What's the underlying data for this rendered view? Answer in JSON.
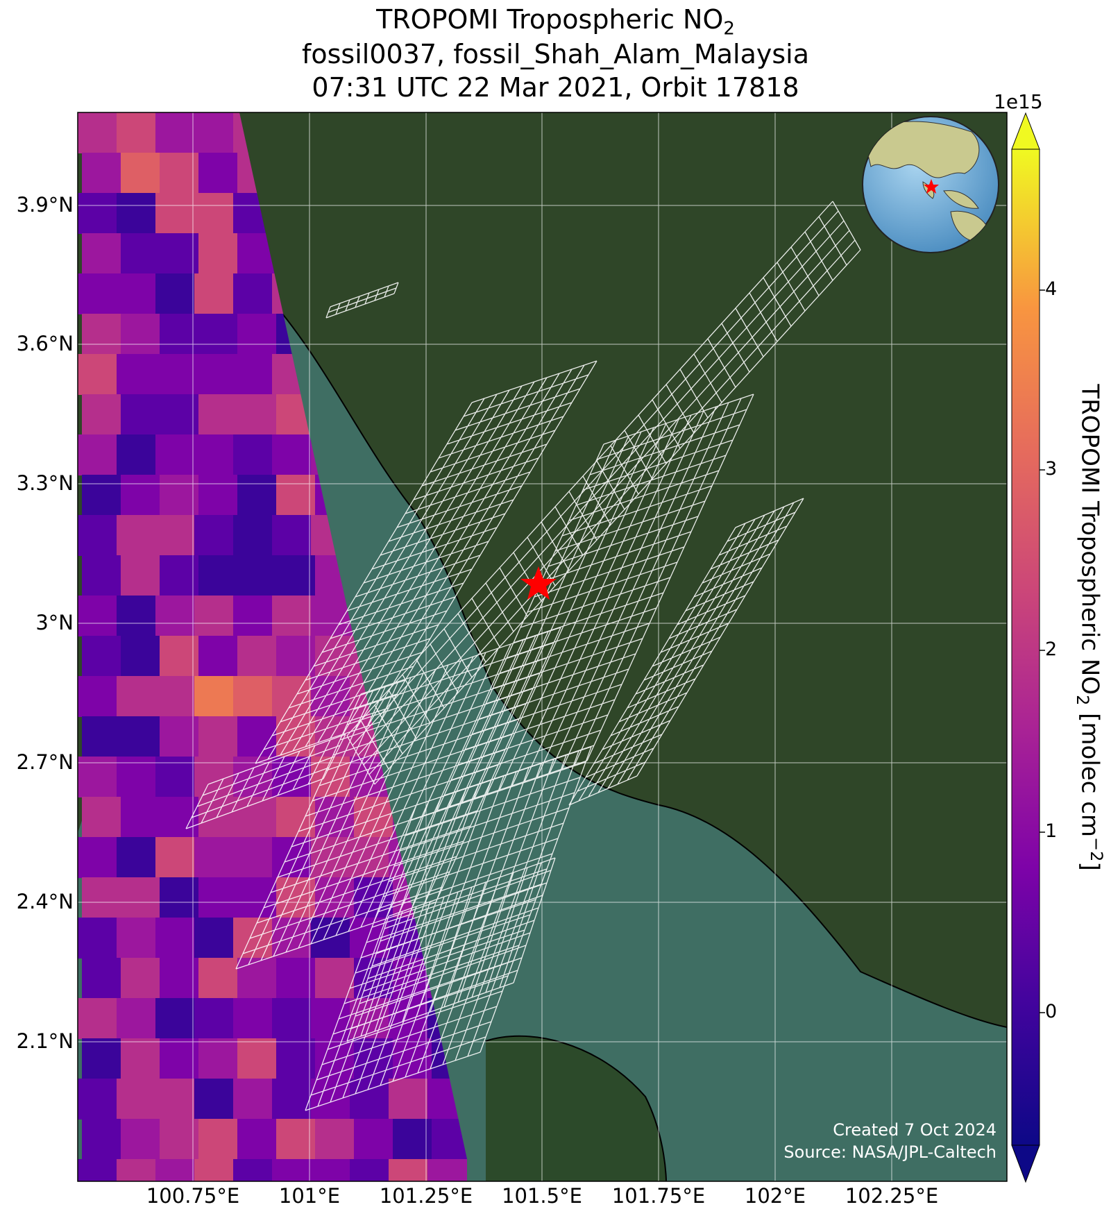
{
  "title": {
    "line1_main": "TROPOMI Tropospheric NO",
    "line1_sub": "2",
    "line2": "fossil0037, fossil_Shah_Alam_Malaysia",
    "line3": "07:31 UTC 22 Mar 2021, Orbit 17818"
  },
  "map": {
    "lat_ticks": [
      "3.9°N",
      "3.6°N",
      "3.3°N",
      "3°N",
      "2.7°N",
      "2.4°N",
      "2.1°N"
    ],
    "lon_ticks": [
      "100.75°E",
      "101°E",
      "101.25°E",
      "101.5°E",
      "101.75°E",
      "102°E",
      "102.25°E"
    ],
    "marker": "red-star",
    "inset": "globe-locator",
    "colors": {
      "land": "#2f4628",
      "sea": "#3f6e63",
      "grid": "#ffffff",
      "marker": "#ff0000"
    }
  },
  "colorbar": {
    "label_main": "TROPOMI Tropospheric NO",
    "label_sub": "2",
    "label_units": " [molec cm",
    "label_sup": "−2",
    "label_end": "]",
    "exponent": "1e15",
    "ticks": [
      "4",
      "3",
      "2",
      "1",
      "0"
    ],
    "colormap": "plasma"
  },
  "credits": {
    "line1": "Created 7 Oct 2024",
    "line2": "Source: NASA/JPL-Caltech"
  }
}
